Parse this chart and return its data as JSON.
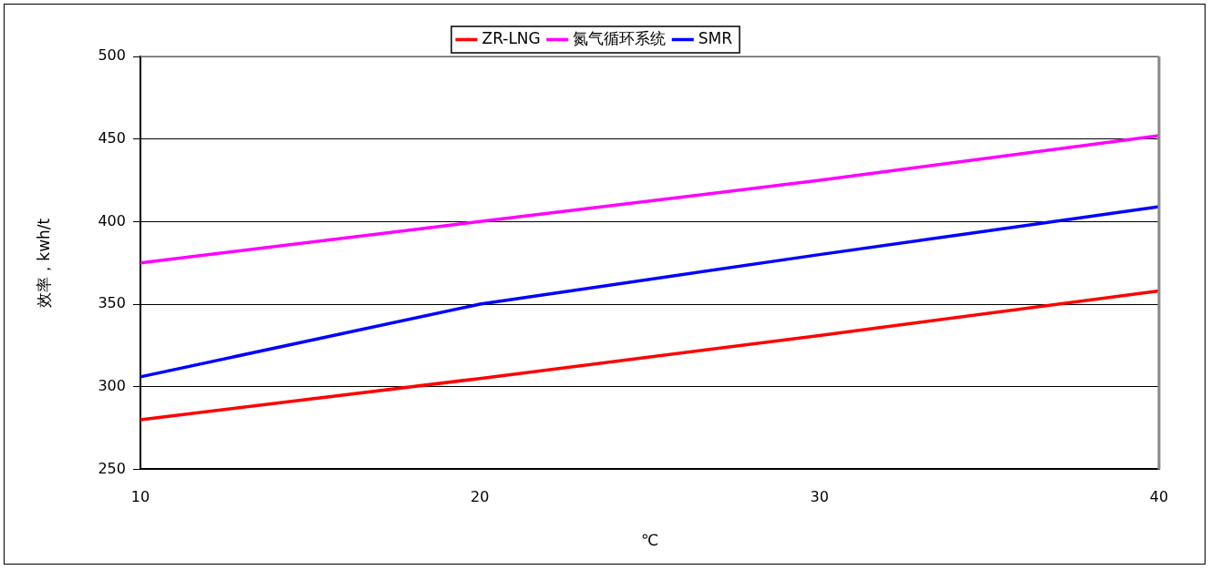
{
  "chart_data": {
    "type": "line",
    "xlabel": "℃",
    "ylabel": "效率，kwh/t",
    "x": [
      10,
      20,
      30,
      40
    ],
    "series": [
      {
        "name": "ZR-LNG",
        "color": "#ff0000",
        "values": [
          280,
          305,
          331,
          358
        ]
      },
      {
        "name": "氮气循环系统",
        "color": "#ff00ff",
        "values": [
          375,
          400,
          425,
          452
        ]
      },
      {
        "name": "SMR",
        "color": "#0000ff",
        "values": [
          306,
          350,
          380,
          409
        ]
      }
    ],
    "xlim": [
      10,
      40
    ],
    "xticks": [
      10,
      20,
      30,
      40
    ],
    "ylim": [
      250,
      500
    ],
    "yticks": [
      250,
      300,
      350,
      400,
      450,
      500
    ],
    "grid": "y",
    "legend": "top",
    "marker": "none",
    "line_style": "solid"
  }
}
